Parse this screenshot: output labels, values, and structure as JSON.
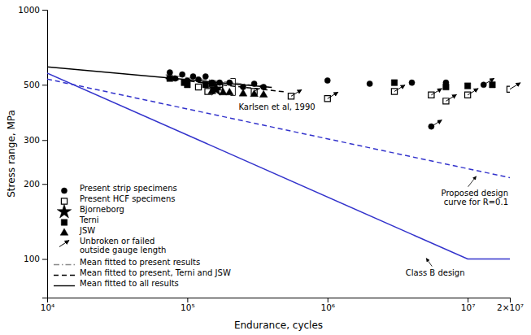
{
  "chart_data": {
    "type": "scatter",
    "xlabel": "Endurance, cycles",
    "ylabel": "Stress range, MPa",
    "log": true,
    "grid": false,
    "legend": "lower left",
    "xlim": [
      10000,
      20000000
    ],
    "ylim": [
      70,
      1000
    ],
    "xticks": [
      {
        "value": 10000,
        "label": "10⁴"
      },
      {
        "value": 100000,
        "label": "10⁵"
      },
      {
        "value": 1000000,
        "label": "10⁶"
      },
      {
        "value": 10000000,
        "label": "10⁷"
      },
      {
        "value": 20000000,
        "label": "2×10⁷"
      }
    ],
    "yticks": [
      100,
      200,
      300,
      500,
      1000
    ],
    "series": [
      {
        "type": "line",
        "color": "#3333CC",
        "line_style": "solid",
        "x": [
          10000,
          10000000,
          20000000
        ],
        "values": [
          557,
          100,
          100
        ]
      },
      {
        "type": "line",
        "color": "#3333CC",
        "line_style": "dashed",
        "x": [
          10000,
          20000000
        ],
        "values": [
          527,
          212
        ]
      },
      {
        "name": "Present strip specimens",
        "type": "scatter",
        "marker": "circle",
        "color": "#000000",
        "x": [
          75000,
          82000,
          92000,
          100000,
          110000,
          120000,
          135000,
          150000,
          170000,
          200000,
          250000,
          300000,
          350000,
          1000000,
          2000000,
          4000000,
          5500000,
          7000000,
          13000000
        ],
        "values": [
          560,
          530,
          550,
          520,
          540,
          525,
          540,
          510,
          510,
          510,
          490,
          505,
          490,
          520,
          505,
          510,
          340,
          510,
          500
        ]
      },
      {
        "name": "Present HCF specimens",
        "type": "scatter",
        "marker": "square-open",
        "color": "#000000",
        "x": [
          120000,
          140000,
          170000,
          300000,
          550000,
          1000000,
          3000000,
          5500000,
          7000000,
          10000000,
          20000000
        ],
        "values": [
          490,
          470,
          490,
          470,
          450,
          440,
          470,
          455,
          430,
          455,
          480
        ]
      },
      {
        "name": "Bjorneborg",
        "type": "scatter",
        "marker": "star",
        "color": "#000000",
        "x": [
          160000
        ],
        "values": [
          480
        ]
      },
      {
        "name": "Terni",
        "type": "scatter",
        "marker": "square",
        "color": "#000000",
        "x": [
          75000,
          95000,
          100000,
          135000,
          150000,
          3000000,
          7000000,
          10000000,
          15000000
        ],
        "values": [
          530,
          510,
          500,
          500,
          505,
          510,
          490,
          495,
          500
        ]
      },
      {
        "name": "JSW",
        "type": "scatter",
        "marker": "triangle",
        "color": "#000000",
        "x": [
          150000,
          180000,
          200000,
          250000,
          300000,
          350000
        ],
        "values": [
          470,
          465,
          465,
          460,
          458,
          455
        ]
      },
      {
        "name": "Unbroken or failed\noutside gauge length",
        "type": "scatter",
        "marker": "arrow",
        "color": "#000000",
        "x": [
          5500000,
          13000000,
          300000,
          550000,
          1000000,
          3000000,
          5500000,
          7000000,
          10000000,
          20000000
        ],
        "values": [
          340,
          500,
          470,
          450,
          440,
          470,
          455,
          430,
          455,
          480
        ]
      },
      {
        "name": "Mean fitted to present results",
        "type": "line",
        "color": "#888888",
        "line_style": "dashdot",
        "x": [
          70000,
          400000
        ],
        "values": [
          548,
          488
        ]
      },
      {
        "name": "Mean fitted to present, Terni and JSW",
        "type": "line",
        "color": "#000000",
        "line_style": "dashed",
        "x": [
          70000,
          500000
        ],
        "values": [
          530,
          468
        ]
      },
      {
        "name": "Mean fitted to all results",
        "type": "line",
        "color": "#000000",
        "line_style": "solid",
        "x": [
          10000,
          400000
        ],
        "values": [
          590,
          488
        ]
      }
    ],
    "annotations": [
      {
        "text": "Proposed design\ncurve for R=0.1",
        "x": 11500000,
        "y": 218
      },
      {
        "text": "Class B design",
        "x": 5000000,
        "y": 103
      },
      {
        "text": "Karlsen et al, 1990",
        "x": 220000,
        "y": [
          453,
          530
        ]
      }
    ]
  }
}
